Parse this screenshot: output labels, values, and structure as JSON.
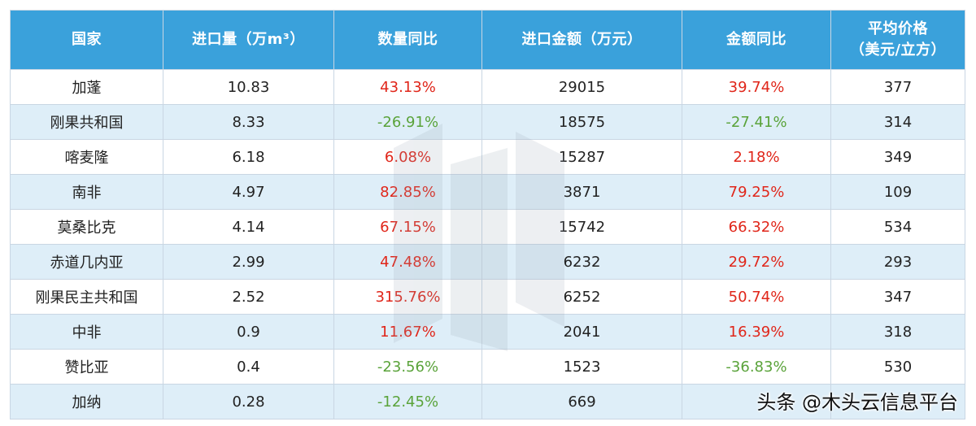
{
  "headers": {
    "country": "国家",
    "volume": "进口量（万m³）",
    "volume_yoy": "数量同比",
    "amount": "进口金额（万元）",
    "amount_yoy": "金额同比",
    "avg_price_line1": "平均价格",
    "avg_price_line2": "（美元/立方）"
  },
  "rows": [
    {
      "country": "加蓬",
      "volume": "10.83",
      "volume_yoy": "43.13%",
      "amount": "29015",
      "amount_yoy": "39.74%",
      "price": "377"
    },
    {
      "country": "刚果共和国",
      "volume": "8.33",
      "volume_yoy": "-26.91%",
      "amount": "18575",
      "amount_yoy": "-27.41%",
      "price": "314"
    },
    {
      "country": "喀麦隆",
      "volume": "6.18",
      "volume_yoy": "6.08%",
      "amount": "15287",
      "amount_yoy": "2.18%",
      "price": "349"
    },
    {
      "country": "南非",
      "volume": "4.97",
      "volume_yoy": "82.85%",
      "amount": "3871",
      "amount_yoy": "79.25%",
      "price": "109"
    },
    {
      "country": "莫桑比克",
      "volume": "4.14",
      "volume_yoy": "67.15%",
      "amount": "15742",
      "amount_yoy": "66.32%",
      "price": "534"
    },
    {
      "country": "赤道几内亚",
      "volume": "2.99",
      "volume_yoy": "47.48%",
      "amount": "6232",
      "amount_yoy": "29.72%",
      "price": "293"
    },
    {
      "country": "刚果民主共和国",
      "volume": "2.52",
      "volume_yoy": "315.76%",
      "amount": "6252",
      "amount_yoy": "50.74%",
      "price": "347"
    },
    {
      "country": "中非",
      "volume": "0.9",
      "volume_yoy": "11.67%",
      "amount": "2041",
      "amount_yoy": "16.39%",
      "price": "318"
    },
    {
      "country": "赞比亚",
      "volume": "0.4",
      "volume_yoy": "-23.56%",
      "amount": "1523",
      "amount_yoy": "-36.83%",
      "price": "530"
    },
    {
      "country": "加纳",
      "volume": "0.28",
      "volume_yoy": "-12.45%",
      "amount": "669",
      "amount_yoy": "",
      "price": ""
    }
  ],
  "credit": "头条 @木头云信息平台",
  "colors": {
    "header_bg": "#3aa1db",
    "row_alt_bg": "#deeef8",
    "positive": "#e0261a",
    "negative": "#5aa33a"
  }
}
